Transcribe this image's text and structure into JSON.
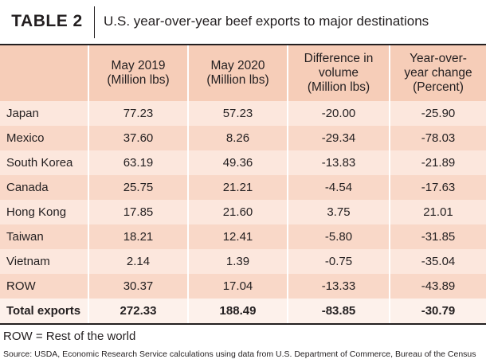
{
  "header": {
    "label": "TABLE 2",
    "title": "U.S. year-over-year beef exports to major destinations"
  },
  "table": {
    "columns": [
      [],
      [
        "May 2019",
        "(Million lbs)"
      ],
      [
        "May 2020",
        "(Million lbs)"
      ],
      [
        "Difference in",
        "volume",
        "(Million lbs)"
      ],
      [
        "Year-over-",
        "year change",
        "(Percent)"
      ]
    ],
    "rows": [
      [
        "Japan",
        "77.23",
        "57.23",
        "-20.00",
        "-25.90"
      ],
      [
        "Mexico",
        "37.60",
        "8.26",
        "-29.34",
        "-78.03"
      ],
      [
        "South Korea",
        "63.19",
        "49.36",
        "-13.83",
        "-21.89"
      ],
      [
        "Canada",
        "25.75",
        "21.21",
        "-4.54",
        "-17.63"
      ],
      [
        "Hong Kong",
        "17.85",
        "21.60",
        "3.75",
        "21.01"
      ],
      [
        "Taiwan",
        "18.21",
        "12.41",
        "-5.80",
        "-31.85"
      ],
      [
        "Vietnam",
        "2.14",
        "1.39",
        "-0.75",
        "-35.04"
      ],
      [
        "ROW",
        "30.37",
        "17.04",
        "-13.33",
        "-43.89"
      ],
      [
        "Total exports",
        "272.33",
        "188.49",
        "-83.85",
        "-30.79"
      ]
    ]
  },
  "footnote": "ROW = Rest of the world",
  "source": "Source: USDA, Economic Research Service calculations using data from U.S. Department of Commerce, Bureau of the Census"
}
